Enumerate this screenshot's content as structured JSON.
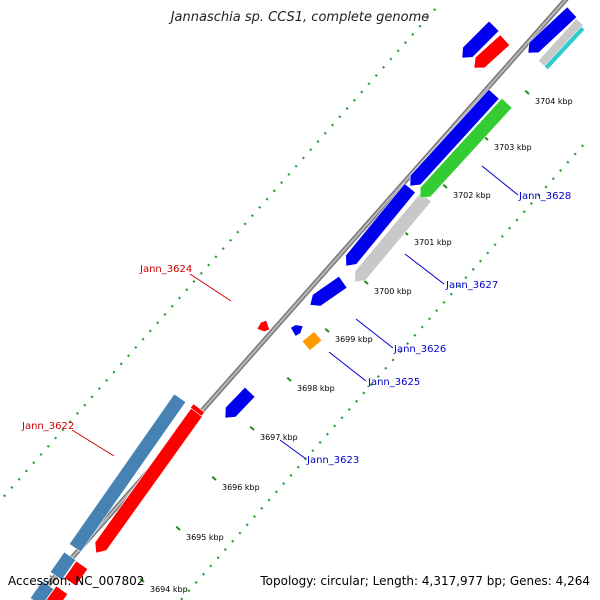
{
  "title": "Jannaschia sp. CCS1, complete genome",
  "accession": "Accession: NC_007802",
  "topology": "Topology: circular; Length: 4,317,977 bp; Genes: 4,264",
  "colors": {
    "backbone": "#8a8a8a",
    "tick_minor": "#2a9a2a",
    "cds_blue": "#0000ee",
    "cds_red": "#ff0000",
    "cds_steel": "#4682b4",
    "cds_gray": "#c8c8c8",
    "cds_green": "#33cc33",
    "cds_orange": "#ff9900",
    "cds_cyan": "#33cccc",
    "label_red": "#cc0000",
    "label_blue": "#0000cc"
  },
  "scale": {
    "kbp_start": 3694,
    "kbp_end": 3704,
    "tick_labels": [
      "3694 kbp",
      "3695 kbp",
      "3696 kbp",
      "3697 kbp",
      "3698 kbp",
      "3699 kbp",
      "3700 kbp",
      "3701 kbp",
      "3702 kbp",
      "3703 kbp",
      "3704 kbp"
    ]
  },
  "gene_labels": [
    {
      "name": "Jann_3622",
      "strand": "reverse",
      "color": "label_red"
    },
    {
      "name": "Jann_3623",
      "strand": "forward",
      "color": "label_blue"
    },
    {
      "name": "Jann_3624",
      "strand": "reverse",
      "color": "label_red"
    },
    {
      "name": "Jann_3625",
      "strand": "forward",
      "color": "label_blue"
    },
    {
      "name": "Jann_3626",
      "strand": "forward",
      "color": "label_blue"
    },
    {
      "name": "Jann_3627",
      "strand": "forward",
      "color": "label_blue"
    },
    {
      "name": "Jann_3628",
      "strand": "forward",
      "color": "label_blue"
    }
  ]
}
